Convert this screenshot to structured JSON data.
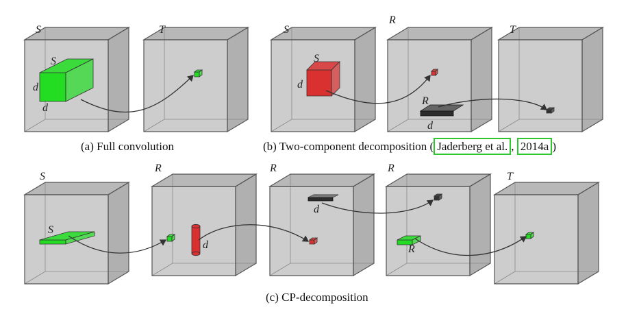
{
  "labels": {
    "S": "S",
    "T": "T",
    "R": "R",
    "d": "d"
  },
  "captions": {
    "a": "(a) Full convolution",
    "b_prefix": "(b) Two-component decomposition (",
    "b_cite1": "Jaderberg et al.",
    "b_sep": ", ",
    "b_cite2": "2014a",
    "b_suffix": ")",
    "c": "(c) CP-decomposition"
  },
  "colors": {
    "box_face": "#c4c4c4",
    "box_edge": "#555555",
    "green": "#22dd22",
    "red": "#d93030",
    "dark": "#333333",
    "cite_border": "#2ec82e"
  }
}
